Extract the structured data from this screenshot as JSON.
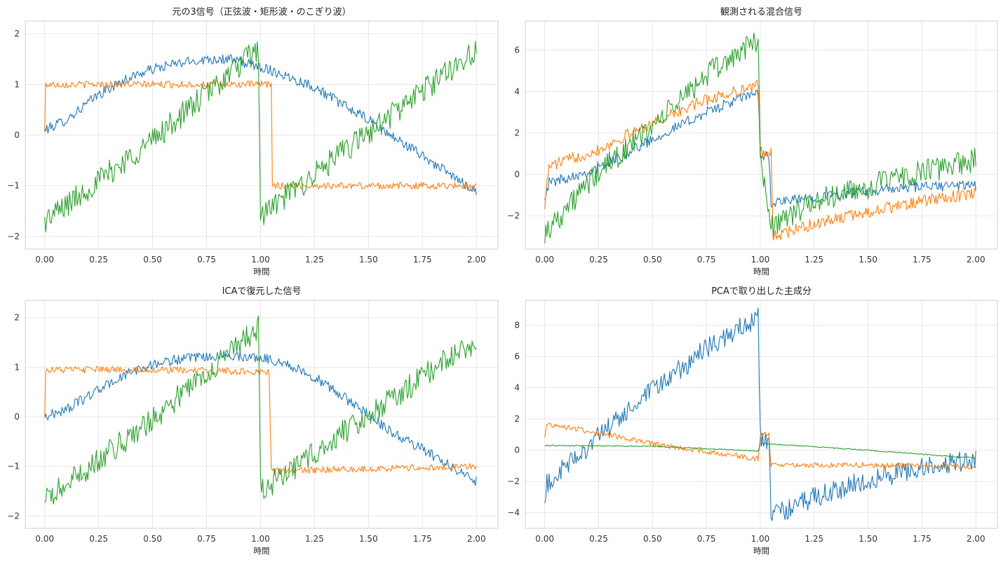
{
  "colors": {
    "blue": "#1f77b4",
    "orange": "#ff7f0e",
    "green": "#2ca02c"
  },
  "chart_data": [
    {
      "type": "line",
      "title": "元の3信号（正弦波・矩形波・のこぎり波）",
      "xlabel": "時間",
      "ylabel": "",
      "xlim": [
        -0.09,
        2.1
      ],
      "ylim": [
        -2.25,
        2.25
      ],
      "xticks": [
        "0.00",
        "0.25",
        "0.50",
        "0.75",
        "1.00",
        "1.25",
        "1.50",
        "1.75",
        "2.00"
      ],
      "yticks": [
        "−2",
        "−1",
        "0",
        "1",
        "2"
      ],
      "grid": true,
      "series": [
        {
          "color": "#1f77b4",
          "noise": 0.06,
          "x": [
            0,
            0.1,
            0.25,
            0.4,
            0.5,
            0.6,
            0.75,
            0.85,
            0.95,
            1.0,
            1.1,
            1.25,
            1.4,
            1.5,
            1.6,
            1.75,
            1.9,
            2.0
          ],
          "y": [
            0.1,
            0.3,
            0.8,
            1.15,
            1.3,
            1.4,
            1.5,
            1.5,
            1.4,
            1.35,
            1.2,
            0.95,
            0.55,
            0.3,
            0.0,
            -0.4,
            -0.85,
            -1.1
          ]
        },
        {
          "color": "#ff7f0e",
          "noise": 0.04,
          "x": [
            0,
            0.005,
            1.05,
            1.051,
            2.0
          ],
          "y": [
            0.05,
            1.0,
            1.0,
            -1.0,
            -1.0
          ]
        },
        {
          "color": "#2ca02c",
          "noise": 0.15,
          "x": [
            0,
            0.5,
            0.99,
            1.0,
            1.5,
            2.0
          ],
          "y": [
            -1.7,
            -0.1,
            1.7,
            -1.6,
            0.05,
            1.7
          ]
        }
      ]
    },
    {
      "type": "line",
      "title": "観測される混合信号",
      "xlabel": "時間",
      "ylabel": "",
      "xlim": [
        -0.09,
        2.1
      ],
      "ylim": [
        -3.6,
        7.4
      ],
      "xticks": [
        "0.00",
        "0.25",
        "0.50",
        "0.75",
        "1.00",
        "1.25",
        "1.50",
        "1.75",
        "2.00"
      ],
      "yticks": [
        "−2",
        "0",
        "2",
        "4",
        "6"
      ],
      "grid": true,
      "series": [
        {
          "color": "#1f77b4",
          "noise": 0.15,
          "x": [
            0,
            0.02,
            0.25,
            0.5,
            0.75,
            0.99,
            1.0,
            1.04,
            1.05,
            1.25,
            1.5,
            1.75,
            2.0
          ],
          "y": [
            -1.0,
            -0.4,
            0.3,
            1.7,
            3.0,
            4.0,
            0.9,
            0.9,
            -1.4,
            -1.1,
            -0.8,
            -0.6,
            -0.5
          ]
        },
        {
          "color": "#ff7f0e",
          "noise": 0.17,
          "x": [
            0,
            0.02,
            0.25,
            0.5,
            0.75,
            0.99,
            1.0,
            1.05,
            1.06,
            1.25,
            1.5,
            1.75,
            2.0
          ],
          "y": [
            -1.4,
            0.4,
            1.2,
            2.5,
            3.6,
            4.3,
            1.1,
            1.1,
            -3.0,
            -2.4,
            -1.8,
            -1.3,
            -0.9
          ]
        },
        {
          "color": "#2ca02c",
          "noise": 0.35,
          "x": [
            0,
            0.25,
            0.5,
            0.75,
            0.99,
            1.0,
            1.05,
            1.25,
            1.5,
            1.75,
            2.0
          ],
          "y": [
            -2.8,
            0.1,
            2.3,
            4.8,
            6.5,
            0.9,
            -2.5,
            -1.3,
            -0.6,
            0.1,
            0.7
          ]
        }
      ]
    },
    {
      "type": "line",
      "title": "ICAで復元した信号",
      "xlabel": "時間",
      "ylabel": "",
      "xlim": [
        -0.09,
        2.1
      ],
      "ylim": [
        -2.25,
        2.35
      ],
      "xticks": [
        "0.00",
        "0.25",
        "0.50",
        "0.75",
        "1.00",
        "1.25",
        "1.50",
        "1.75",
        "2.00"
      ],
      "yticks": [
        "−2",
        "−1",
        "0",
        "1",
        "2"
      ],
      "grid": true,
      "series": [
        {
          "color": "#1f77b4",
          "noise": 0.06,
          "x": [
            0,
            0.1,
            0.25,
            0.4,
            0.5,
            0.6,
            0.75,
            0.85,
            0.95,
            1.0,
            1.1,
            1.25,
            1.4,
            1.5,
            1.6,
            1.75,
            1.9,
            2.0
          ],
          "y": [
            0.0,
            0.15,
            0.55,
            0.9,
            1.05,
            1.15,
            1.2,
            1.25,
            1.2,
            1.2,
            1.1,
            0.8,
            0.35,
            0.05,
            -0.3,
            -0.65,
            -1.05,
            -1.3
          ]
        },
        {
          "color": "#ff7f0e",
          "noise": 0.04,
          "x": [
            0,
            0.005,
            0.5,
            1.04,
            1.05,
            1.5,
            2.0
          ],
          "y": [
            0.0,
            0.95,
            0.95,
            0.9,
            -1.1,
            -1.05,
            -1.0
          ]
        },
        {
          "color": "#2ca02c",
          "noise": 0.15,
          "x": [
            0,
            0.5,
            0.99,
            1.0,
            1.5,
            2.0
          ],
          "y": [
            -1.7,
            -0.05,
            1.8,
            -1.5,
            0.05,
            1.55
          ]
        }
      ]
    },
    {
      "type": "line",
      "title": "PCAで取り出した主成分",
      "xlabel": "時間",
      "ylabel": "",
      "xlim": [
        -0.09,
        2.1
      ],
      "ylim": [
        -5.0,
        9.6
      ],
      "xticks": [
        "0.00",
        "0.25",
        "0.50",
        "0.75",
        "1.00",
        "1.25",
        "1.50",
        "1.75",
        "2.00"
      ],
      "yticks": [
        "−4",
        "−2",
        "0",
        "2",
        "4",
        "6",
        "8"
      ],
      "grid": true,
      "series": [
        {
          "color": "#1f77b4",
          "noise": 0.4,
          "x": [
            0,
            0.01,
            0.25,
            0.5,
            0.75,
            0.99,
            1.0,
            1.04,
            1.05,
            1.25,
            1.5,
            1.75,
            2.0
          ],
          "y": [
            -3.8,
            -2.2,
            0.9,
            3.8,
            6.5,
            8.5,
            0.8,
            0.7,
            -4.3,
            -3.0,
            -1.9,
            -1.1,
            -0.6
          ]
        },
        {
          "color": "#ff7f0e",
          "noise": 0.1,
          "x": [
            0,
            0.01,
            0.25,
            0.5,
            0.75,
            0.99,
            1.0,
            1.04,
            1.05,
            1.25,
            1.5,
            1.75,
            2.0
          ],
          "y": [
            0.7,
            1.7,
            1.1,
            0.4,
            -0.1,
            -0.55,
            1.0,
            1.0,
            -0.9,
            -0.95,
            -0.95,
            -1.0,
            -1.05
          ]
        },
        {
          "color": "#2ca02c",
          "noise": 0.02,
          "x": [
            0,
            0.5,
            0.99,
            1.0,
            1.5,
            2.0
          ],
          "y": [
            0.3,
            0.25,
            -0.05,
            0.45,
            0.0,
            -0.5
          ]
        }
      ]
    }
  ]
}
